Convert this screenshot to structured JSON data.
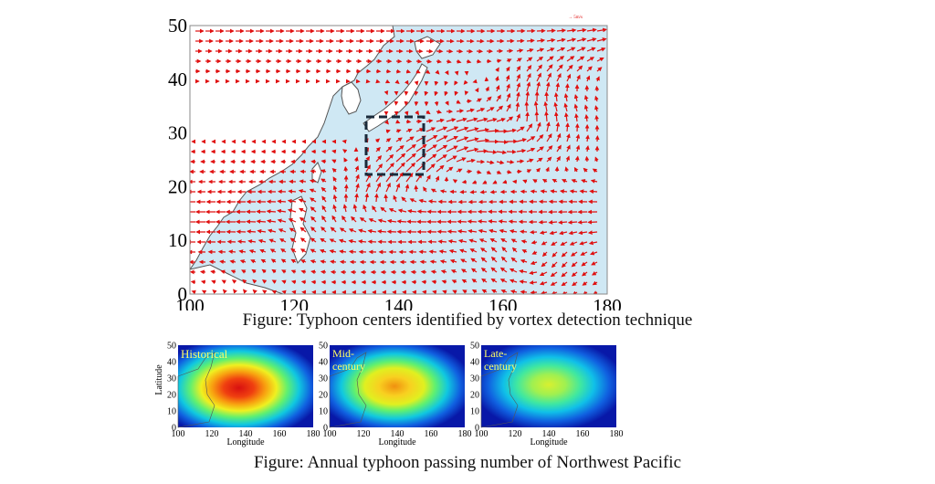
{
  "colors": {
    "ocean": "#cfe8f4",
    "land": "#ffffff",
    "coast": "#555555",
    "arrow": "#e01010",
    "box": "#1a2a3a",
    "panel_label": "#ffff66"
  },
  "chart_data": [
    {
      "type": "vector-field-map",
      "caption": "Figure: Typhoon centers identified by vortex detection technique",
      "x_ticks": [
        "100",
        "120",
        "140",
        "160",
        "180"
      ],
      "y_ticks": [
        "0",
        "10",
        "20",
        "30",
        "40",
        "50"
      ],
      "xlim": [
        100,
        180
      ],
      "ylim": [
        0,
        50
      ],
      "legend_text": "→ 5m/s",
      "legend_position": "top-right",
      "highlight_box": {
        "lon": [
          134,
          145
        ],
        "lat": [
          22,
          33
        ]
      }
    },
    {
      "type": "heatmap",
      "caption": "Figure: Annual typhoon passing number of Northwest Pacific",
      "xlabel": "Longitude",
      "ylabel": "Latitude",
      "x_ticks": [
        "100",
        "120",
        "140",
        "160",
        "180"
      ],
      "y_ticks": [
        "0",
        "10",
        "20",
        "30",
        "40",
        "50"
      ],
      "xlim": [
        100,
        180
      ],
      "ylim": [
        0,
        50
      ],
      "panels": [
        {
          "label": "Historical",
          "intensity": 1.0
        },
        {
          "label_line1": "Mid-",
          "label_line2": "century",
          "intensity": 0.78
        },
        {
          "label_line1": "Late-",
          "label_line2": "century",
          "intensity": 0.6
        }
      ]
    }
  ]
}
